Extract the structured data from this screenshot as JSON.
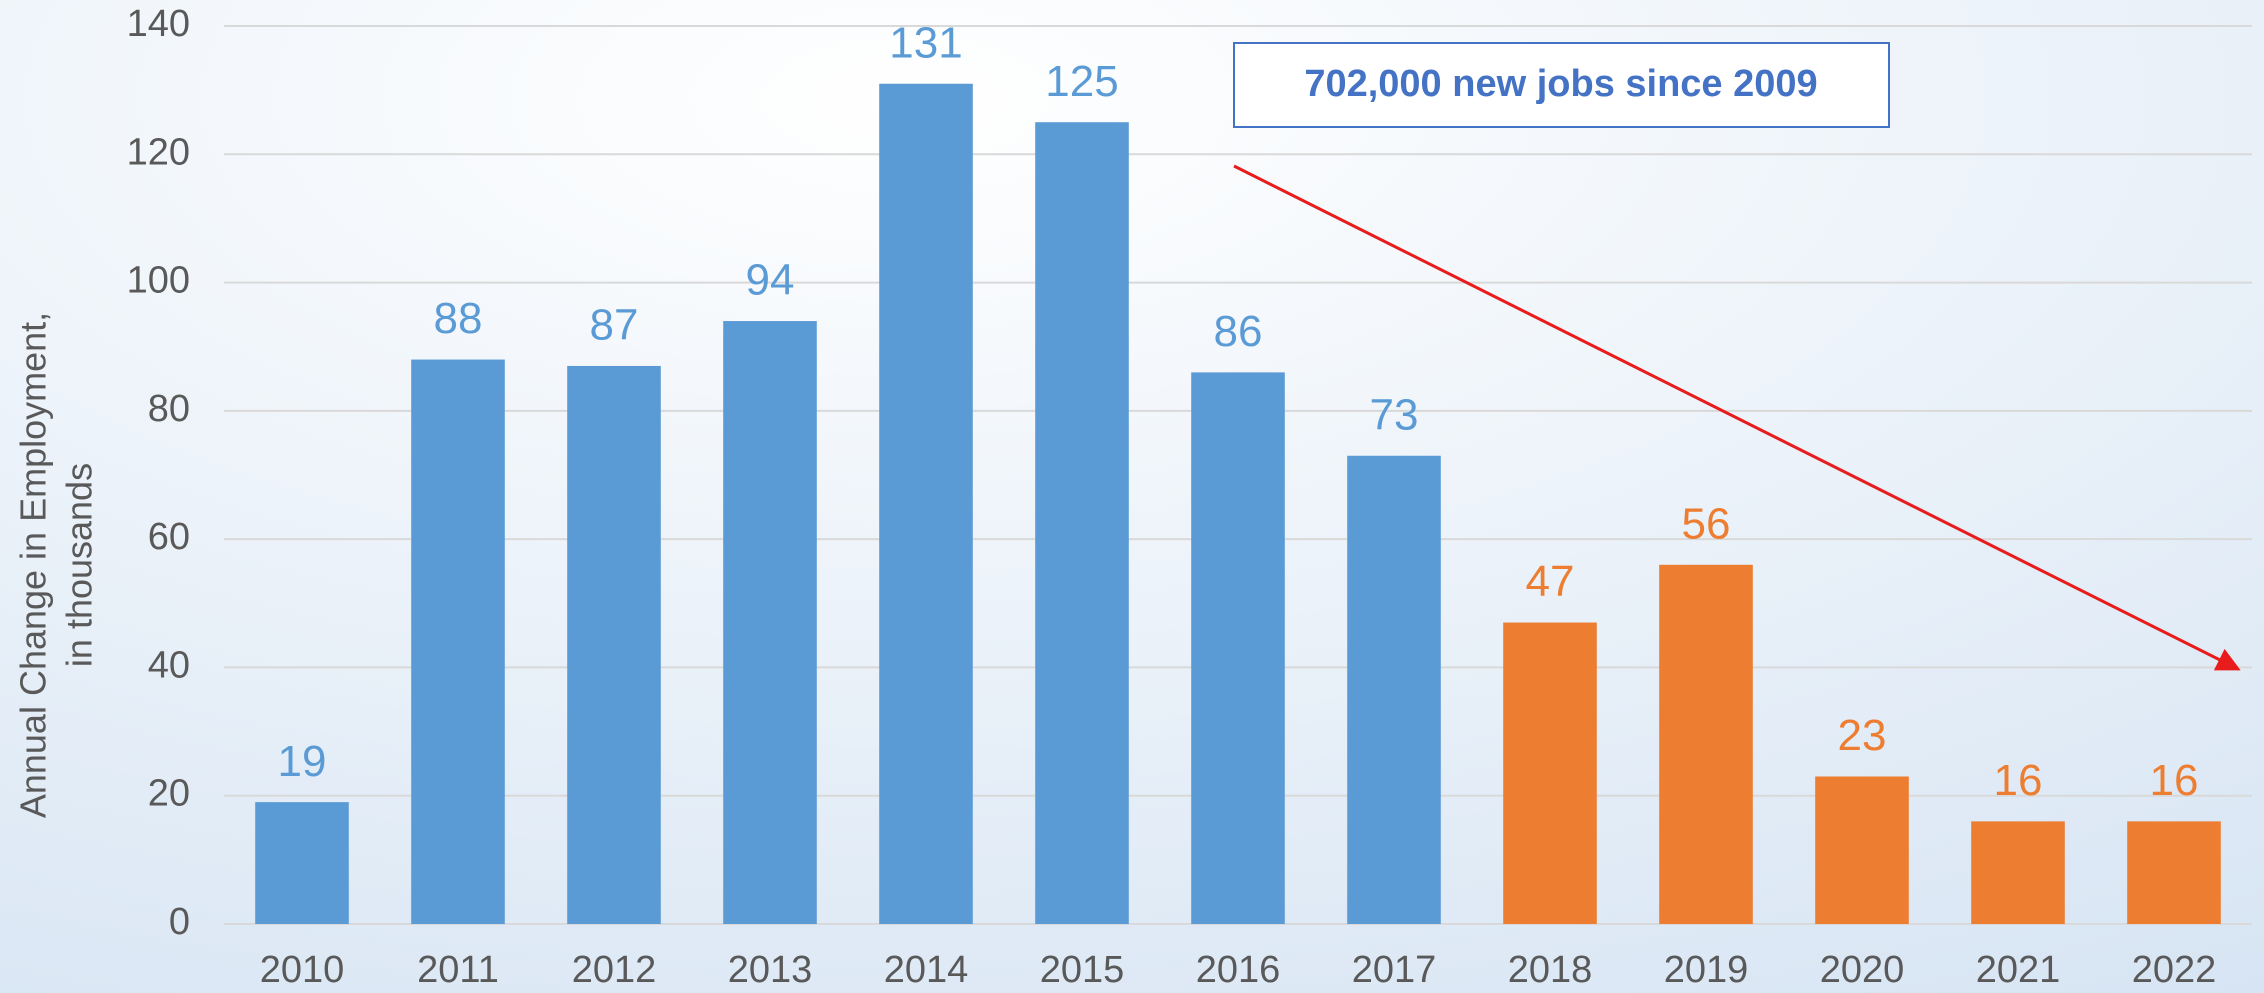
{
  "chart_data": {
    "type": "bar",
    "ylabel": [
      "Annual Change in Employment,",
      "in thousands"
    ],
    "annotation": "702,000 new jobs since 2009",
    "categories": [
      "2010",
      "2011",
      "2012",
      "2013",
      "2014",
      "2015",
      "2016",
      "2017",
      "2018",
      "2019",
      "2020",
      "2021",
      "2022"
    ],
    "values": [
      19,
      88,
      87,
      94,
      131,
      125,
      86,
      73,
      47,
      56,
      23,
      16,
      16
    ],
    "colors": [
      "#5b9bd5",
      "#5b9bd5",
      "#5b9bd5",
      "#5b9bd5",
      "#5b9bd5",
      "#5b9bd5",
      "#5b9bd5",
      "#5b9bd5",
      "#ed7d31",
      "#ed7d31",
      "#ed7d31",
      "#ed7d31",
      "#ed7d31"
    ],
    "ylim": [
      0,
      140
    ],
    "yticks": [
      0,
      20,
      40,
      60,
      80,
      100,
      120,
      140
    ],
    "grid": true
  }
}
